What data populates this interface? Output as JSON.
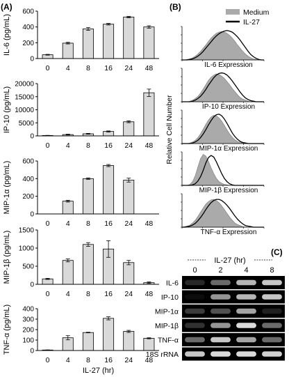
{
  "panel_labels": {
    "a": "(A)",
    "b": "(B)",
    "c": "(C)"
  },
  "chart_data": [
    {
      "type": "bar",
      "ylabel": "IL-6 (pg/mL)",
      "xlabel": "",
      "categories": [
        "0",
        "4",
        "8",
        "16",
        "24",
        "48"
      ],
      "values": [
        48,
        195,
        375,
        435,
        525,
        400
      ],
      "errors": [
        5,
        10,
        18,
        10,
        8,
        15
      ],
      "ylim": [
        0,
        600
      ],
      "yticks": [
        0,
        200,
        400,
        600
      ],
      "yticklabels": [
        "0",
        "200",
        "400",
        "600"
      ]
    },
    {
      "type": "bar",
      "ylabel": "IP-10 (pg/mL)",
      "xlabel": "",
      "categories": [
        "0",
        "4",
        "8",
        "16",
        "24",
        "48"
      ],
      "values": [
        150,
        500,
        800,
        1700,
        5400,
        16500
      ],
      "errors": [
        60,
        150,
        150,
        200,
        350,
        1400
      ],
      "ylim": [
        0,
        20000
      ],
      "yticks": [
        0,
        5000,
        10000,
        15000,
        20000
      ],
      "yticklabels": [
        "0",
        "5000",
        "10000",
        "15000",
        "20000"
      ]
    },
    {
      "type": "bar",
      "ylabel": "MIP-1α (pg/mL)",
      "xlabel": "",
      "categories": [
        "0",
        "4",
        "8",
        "16",
        "24",
        "48"
      ],
      "values": [
        0,
        145,
        400,
        548,
        383,
        0
      ],
      "errors": [
        0,
        10,
        8,
        12,
        22,
        0
      ],
      "ylim": [
        0,
        600
      ],
      "yticks": [
        0,
        200,
        400,
        600
      ],
      "yticklabels": [
        "0",
        "200",
        "400",
        "600"
      ]
    },
    {
      "type": "bar",
      "ylabel": "MIP-1β (pg/mL)",
      "xlabel": "",
      "categories": [
        "0",
        "4",
        "8",
        "16",
        "24",
        "48"
      ],
      "values": [
        150,
        660,
        1100,
        975,
        600,
        45
      ],
      "errors": [
        15,
        40,
        50,
        230,
        60,
        20
      ],
      "ylim": [
        0,
        1500
      ],
      "yticks": [
        0,
        500,
        1000,
        1500
      ],
      "yticklabels": [
        "0",
        "500",
        "1000",
        "1500"
      ]
    },
    {
      "type": "bar",
      "ylabel": "TNF-α (pg/mL)",
      "xlabel": "IL-27 (hr)",
      "categories": [
        "0",
        "4",
        "8",
        "16",
        "24",
        "48"
      ],
      "values": [
        5,
        122,
        172,
        308,
        183,
        117
      ],
      "errors": [
        1,
        20,
        3,
        15,
        10,
        5
      ],
      "ylim": [
        0,
        400
      ],
      "yticks": [
        0,
        100,
        200,
        300,
        400
      ],
      "yticklabels": [
        "0",
        "100",
        "200",
        "300",
        "400"
      ]
    }
  ],
  "flow": {
    "legend": {
      "medium": "Medium",
      "il27": "IL-27"
    },
    "ylabel": "Relative Cell Number",
    "colors": {
      "medium_fill": "#aaaaaa",
      "il27_line": "#000000"
    },
    "histograms": [
      {
        "label": "IL-6 Expression",
        "medium": [
          0,
          0,
          1,
          2,
          4,
          7,
          11,
          16,
          22,
          28,
          35,
          41,
          46,
          50,
          52,
          53,
          52,
          50,
          46,
          41,
          35,
          28,
          22,
          16,
          11,
          7,
          4,
          2,
          1,
          0,
          0,
          0
        ],
        "il27": [
          0,
          0,
          0,
          1,
          2,
          4,
          7,
          11,
          16,
          22,
          28,
          34,
          40,
          45,
          49,
          52,
          54,
          55,
          54,
          52,
          48,
          43,
          37,
          30,
          23,
          16,
          10,
          6,
          3,
          1,
          0,
          0
        ]
      },
      {
        "label": "IP-10 Expression",
        "medium": [
          0,
          0,
          0,
          1,
          3,
          6,
          10,
          16,
          24,
          32,
          40,
          46,
          50,
          52,
          51,
          48,
          44,
          38,
          32,
          25,
          19,
          13,
          8,
          5,
          3,
          1,
          0,
          0,
          0,
          0,
          0,
          0
        ],
        "il27": [
          0,
          0,
          0,
          0,
          1,
          3,
          6,
          10,
          16,
          23,
          31,
          38,
          45,
          50,
          53,
          54,
          53,
          50,
          45,
          39,
          32,
          25,
          18,
          12,
          7,
          4,
          2,
          1,
          0,
          0,
          0,
          0
        ]
      },
      {
        "label": "MIP-1α Expression",
        "medium": [
          0,
          0,
          0,
          1,
          3,
          6,
          11,
          18,
          27,
          36,
          44,
          50,
          53,
          52,
          48,
          42,
          34,
          26,
          18,
          12,
          7,
          4,
          2,
          1,
          0,
          0,
          0,
          0,
          0,
          0,
          0,
          0
        ],
        "il27": [
          0,
          0,
          0,
          0,
          1,
          3,
          6,
          11,
          18,
          26,
          35,
          43,
          50,
          54,
          55,
          52,
          46,
          38,
          29,
          20,
          13,
          8,
          4,
          2,
          1,
          0,
          0,
          0,
          0,
          0,
          0,
          0
        ]
      },
      {
        "label": "MIP-1β Expression",
        "medium": [
          0,
          0,
          0,
          2,
          7,
          18,
          34,
          50,
          58,
          55,
          45,
          33,
          22,
          13,
          7,
          4,
          2,
          1,
          0,
          0,
          0,
          0,
          0,
          0,
          0,
          0,
          0,
          0,
          0,
          0,
          0,
          0
        ],
        "il27": [
          0,
          0,
          0,
          0,
          1,
          3,
          8,
          16,
          28,
          42,
          52,
          56,
          53,
          44,
          33,
          22,
          13,
          7,
          3,
          1,
          0,
          0,
          0,
          0,
          0,
          0,
          0,
          0,
          0,
          0,
          0,
          0
        ]
      },
      {
        "label": "TNF-α Expression",
        "medium": [
          0,
          1,
          2,
          4,
          8,
          13,
          20,
          28,
          36,
          43,
          48,
          51,
          52,
          50,
          46,
          40,
          33,
          26,
          19,
          13,
          8,
          5,
          3,
          1,
          0,
          0,
          0,
          0,
          0,
          0,
          0,
          0
        ],
        "il27": [
          0,
          0,
          1,
          2,
          4,
          7,
          12,
          18,
          25,
          33,
          40,
          46,
          50,
          52,
          52,
          50,
          46,
          41,
          35,
          28,
          21,
          15,
          10,
          6,
          3,
          2,
          1,
          0,
          0,
          0,
          0,
          0
        ]
      }
    ]
  },
  "gel": {
    "header": "IL-27 (hr)",
    "lanes": [
      "0",
      "2",
      "4",
      "8"
    ],
    "rows": [
      {
        "label": "IL-6",
        "intensity": [
          0.25,
          0.55,
          0.8,
          0.85
        ]
      },
      {
        "label": "IP-10",
        "intensity": [
          0.05,
          0.7,
          0.8,
          0.85
        ]
      },
      {
        "label": "MIP-1α",
        "intensity": [
          0.35,
          0.45,
          0.75,
          0.2
        ]
      },
      {
        "label": "MIP-1β",
        "intensity": [
          0.3,
          0.7,
          0.9,
          0.55
        ]
      },
      {
        "label": "TNF-α",
        "intensity": [
          0.55,
          0.85,
          0.75,
          0.55
        ]
      },
      {
        "label": "18S rRNA",
        "intensity": [
          0.85,
          0.9,
          0.9,
          0.88
        ]
      }
    ]
  }
}
